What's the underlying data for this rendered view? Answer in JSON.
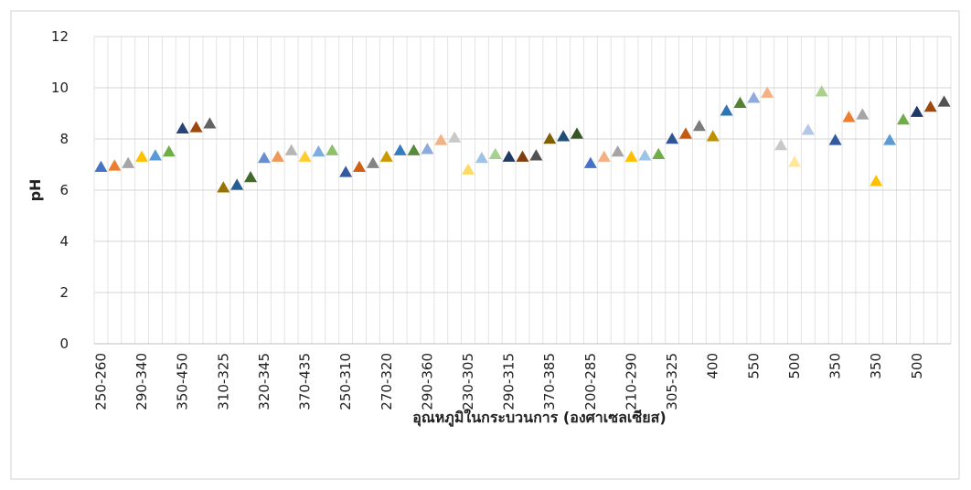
{
  "chart_data": {
    "type": "scatter",
    "x_label": "อุณหภูมิในกระบวนการ (องศาเซลเซียส)",
    "y_label": "pH",
    "categories": [
      "250-260",
      null,
      null,
      "290-340",
      null,
      null,
      "350-450",
      null,
      null,
      "310-325",
      null,
      null,
      "320-345",
      null,
      null,
      "370-435",
      null,
      null,
      "250-310",
      null,
      null,
      "270-320",
      null,
      null,
      "290-360",
      null,
      null,
      "230-305",
      null,
      null,
      "290-315",
      null,
      null,
      "370-385",
      null,
      null,
      "200-285",
      null,
      null,
      "210-290",
      null,
      null,
      "305-325",
      null,
      null,
      "400",
      null,
      null,
      "550",
      null,
      null,
      "500",
      null,
      null,
      "350",
      null,
      null,
      "350",
      null,
      null,
      "500",
      null,
      null
    ],
    "values": [
      6.9,
      6.95,
      7.05,
      7.3,
      7.35,
      7.5,
      8.4,
      8.45,
      8.6,
      6.1,
      6.2,
      6.5,
      7.25,
      7.3,
      7.55,
      7.3,
      7.5,
      7.55,
      6.7,
      6.9,
      7.05,
      7.3,
      7.55,
      7.55,
      7.6,
      7.95,
      8.05,
      6.8,
      7.25,
      7.4,
      7.3,
      7.3,
      7.35,
      8.0,
      8.1,
      8.2,
      7.05,
      7.3,
      7.5,
      7.3,
      7.35,
      7.4,
      8.0,
      8.2,
      8.5,
      8.1,
      9.1,
      9.4,
      9.6,
      9.8,
      7.75,
      7.1,
      8.35,
      9.85,
      7.95,
      8.85,
      8.95,
      6.35,
      7.95,
      8.75,
      9.05,
      9.25,
      9.45
    ],
    "colors": [
      "#4472c4",
      "#ed7d31",
      "#a5a5a5",
      "#ffc000",
      "#5b9bd5",
      "#70ad47",
      "#264478",
      "#9e480e",
      "#636363",
      "#997300",
      "#255e91",
      "#43682b",
      "#698ed0",
      "#f1975a",
      "#b7b7b7",
      "#ffcd33",
      "#7cafdd",
      "#8cc168",
      "#335aa1",
      "#d26012",
      "#848484",
      "#cc9a00",
      "#327dc2",
      "#5a8a39",
      "#8faadc",
      "#f4b183",
      "#c9c9c9",
      "#ffd966",
      "#9dc3e6",
      "#a9d18e",
      "#203864",
      "#843c0c",
      "#525252",
      "#7f6000",
      "#1f4e79",
      "#385723",
      "#4472c4",
      "#f4b183",
      "#a5a5a5",
      "#ffc000",
      "#9dc3e6",
      "#70ad47",
      "#2f5597",
      "#c55a11",
      "#7b7b7b",
      "#bf9000",
      "#2e75b6",
      "#548235",
      "#8faadc",
      "#f4b183",
      "#c9c9c9",
      "#ffe699",
      "#b4c7e7",
      "#a9d18e",
      "#335aa1",
      "#ed7d31",
      "#a5a5a5",
      "#ffc000",
      "#5b9bd5",
      "#70ad47",
      "#203864",
      "#9e480e",
      "#525252"
    ],
    "ylim": [
      0,
      12
    ],
    "yticks": [
      0,
      2,
      4,
      6,
      8,
      10,
      12
    ],
    "grid": true
  }
}
